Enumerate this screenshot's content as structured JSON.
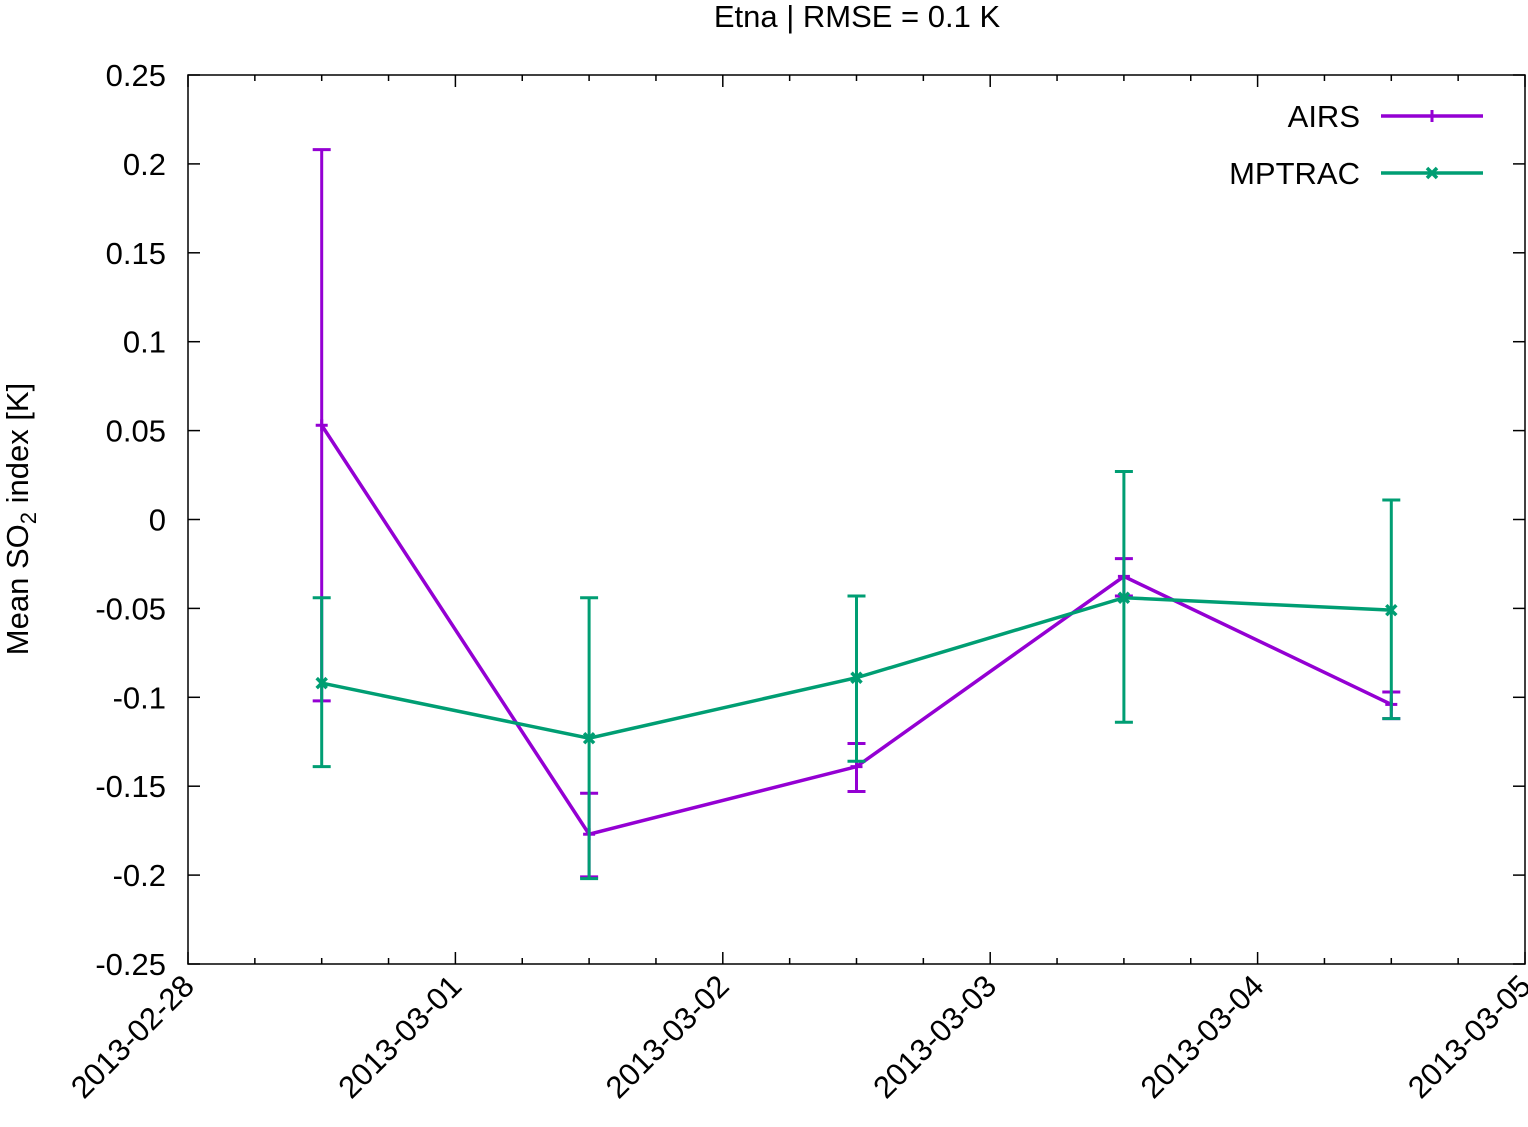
{
  "chart_data": {
    "type": "line",
    "title": "Etna | RMSE = 0.1 K",
    "ylabel": {
      "prefix": "Mean SO",
      "subscript": "2",
      "suffix": " index [K]"
    },
    "xlabel": "",
    "xlim": [
      "2013-02-28",
      "2013-03-05"
    ],
    "ylim": [
      -0.25,
      0.25
    ],
    "x_tick_labels": [
      "2013-02-28",
      "2013-03-01",
      "2013-03-02",
      "2013-03-03",
      "2013-03-04",
      "2013-03-05"
    ],
    "y_tick_labels": [
      "0.25",
      "0.2",
      "0.15",
      "0.1",
      "0.05",
      "0",
      "-0.05",
      "-0.1",
      "-0.15",
      "-0.2",
      "-0.25"
    ],
    "grid": false,
    "legend_position": "top-right",
    "x": [
      "2013-02-28 12:00",
      "2013-03-01 12:00",
      "2013-03-02 12:00",
      "2013-03-03 12:00",
      "2013-03-04 12:00"
    ],
    "series": [
      {
        "name": "AIRS",
        "color": "#9400d3",
        "marker": "plus",
        "values": [
          0.053,
          -0.177,
          -0.139,
          -0.032,
          -0.104
        ],
        "err_low": [
          -0.102,
          -0.201,
          -0.153,
          -0.043,
          -0.112
        ],
        "err_high": [
          0.208,
          -0.154,
          -0.126,
          -0.022,
          -0.097
        ]
      },
      {
        "name": "MPTRAC",
        "color": "#009e73",
        "marker": "cross",
        "values": [
          -0.092,
          -0.123,
          -0.089,
          -0.044,
          -0.051
        ],
        "err_low": [
          -0.139,
          -0.202,
          -0.136,
          -0.114,
          -0.112
        ],
        "err_high": [
          -0.044,
          -0.044,
          -0.043,
          0.027,
          0.011
        ]
      }
    ]
  }
}
